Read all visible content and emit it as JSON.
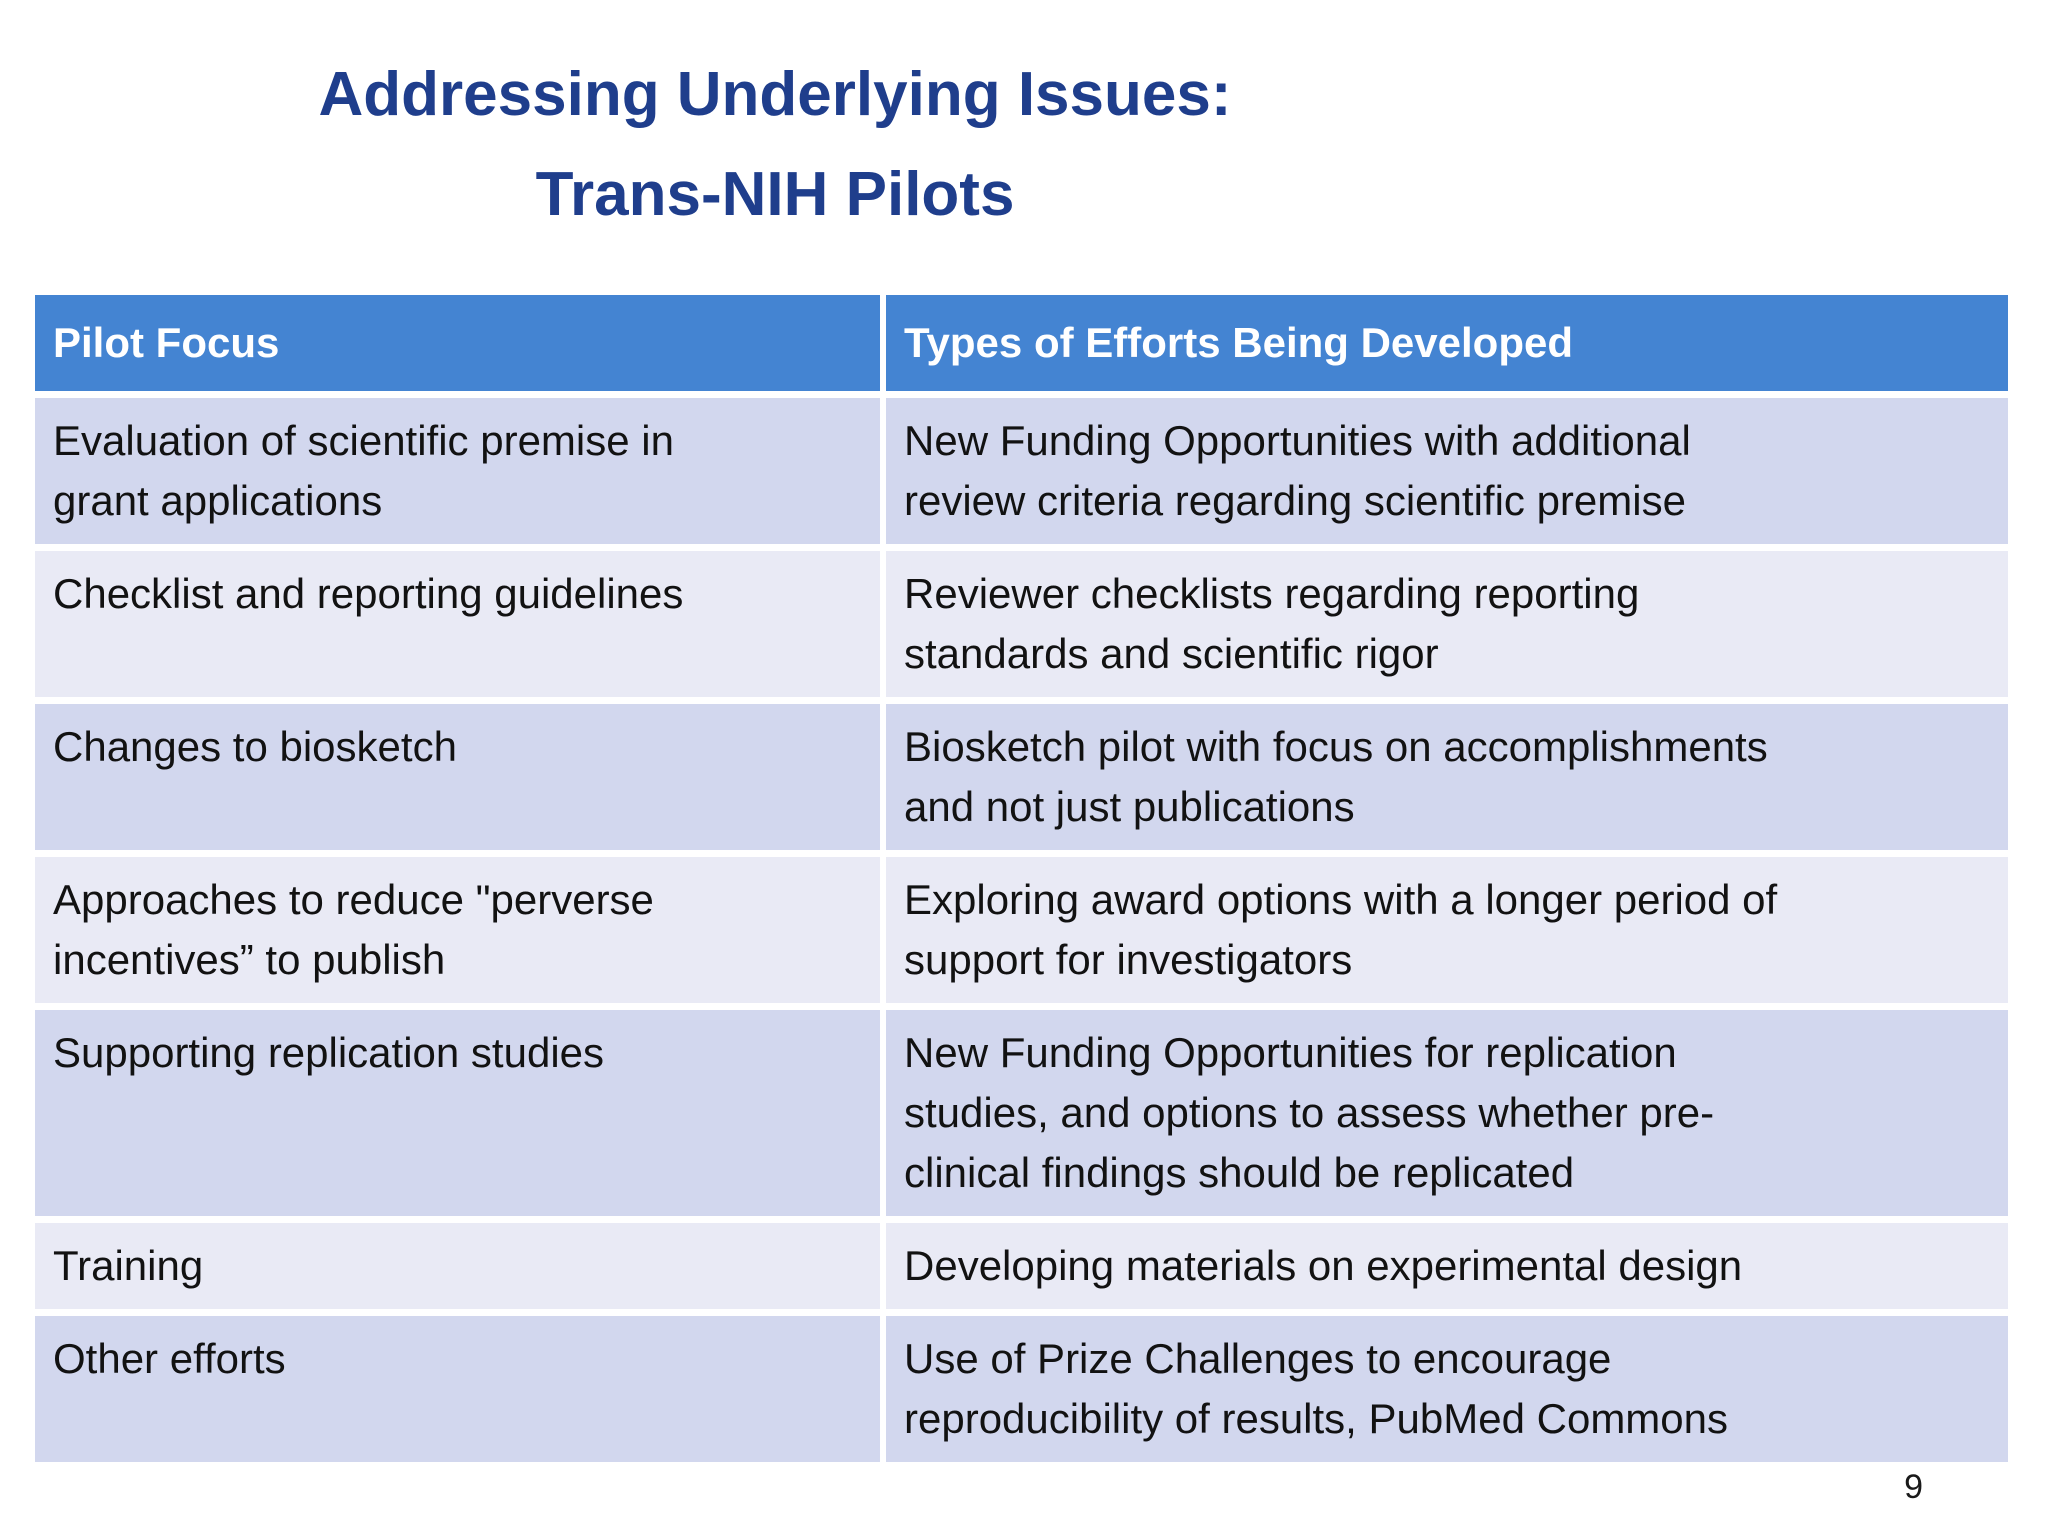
{
  "slide": {
    "title_line1": "Addressing Underlying Issues:",
    "title_line2": "Trans-NIH Pilots",
    "page_number": "9"
  },
  "table": {
    "headers": [
      "Pilot Focus",
      "Types of Efforts Being Developed"
    ],
    "rows": [
      {
        "focus": "Evaluation of scientific premise in\ngrant applications",
        "efforts": "New Funding Opportunities with additional\nreview criteria regarding scientific premise"
      },
      {
        "focus": "Checklist and reporting guidelines",
        "efforts": "Reviewer checklists regarding reporting\nstandards and scientific rigor"
      },
      {
        "focus": "Changes to biosketch",
        "efforts": "Biosketch pilot with focus on accomplishments\nand not just publications"
      },
      {
        "focus": "Approaches to reduce \"perverse\nincentives” to publish",
        "efforts": "Exploring award options with a longer period of\nsupport for investigators"
      },
      {
        "focus": "Supporting replication studies",
        "efforts": "New Funding Opportunities for replication\nstudies, and options to assess whether pre-\nclinical findings should be replicated"
      },
      {
        "focus": "Training",
        "efforts": "Developing materials on experimental design"
      },
      {
        "focus": "Other efforts",
        "efforts": "Use of Prize Challenges to encourage\nreproducibility of results, PubMed Commons"
      }
    ]
  },
  "colors": {
    "title": "#1F3E8C",
    "header_bg": "#4484D2",
    "header_text": "#FFFFFF",
    "row_odd_bg": "#D2D7EE",
    "row_even_bg": "#E9EAF5",
    "body_text": "#121212"
  }
}
